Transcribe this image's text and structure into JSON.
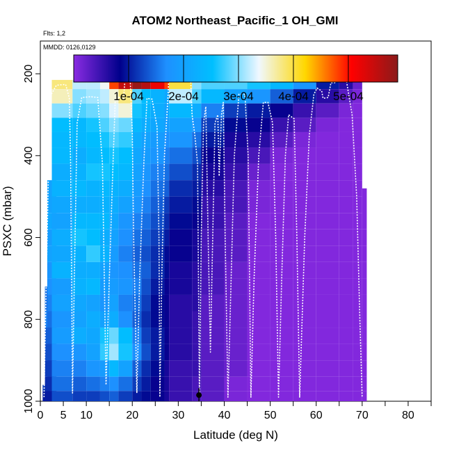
{
  "header": {
    "title": "ATOM2 Northeast_Pacific_1 OH_GMI",
    "flights": "Flts: 1,2",
    "dates": "MMDD: 0126,0129"
  },
  "colorbar": {
    "labels": [
      "1e-04",
      "2e-04",
      "3e-04",
      "4e-04",
      "5e-04"
    ],
    "ticks": [
      0.0001,
      0.0002,
      0.0003,
      0.0004,
      0.0005
    ],
    "range": [
      0,
      0.00059
    ],
    "colors": [
      "#8a2be2",
      "#00008b",
      "#1e90ff",
      "#00bfff",
      "#f0f8ff",
      "#ffd700",
      "#ff0000",
      "#8b1a1a"
    ]
  },
  "chart_data": {
    "type": "heatmap",
    "title": "ATOM2 Northeast_Pacific_1 OH_GMI",
    "xlabel": "Latitude (deg N)",
    "ylabel": "PSXC (mbar)",
    "xlim": [
      0,
      85
    ],
    "ylim": [
      1000,
      120
    ],
    "x_ticks": [
      0,
      5,
      10,
      20,
      30,
      40,
      50,
      60,
      70,
      80
    ],
    "y_ticks": [
      200,
      400,
      600,
      800,
      1000
    ],
    "grid": false,
    "pressure_levels": [
      180,
      220,
      255,
      290,
      325,
      360,
      400,
      440,
      480,
      520,
      560,
      600,
      640,
      680,
      720,
      760,
      800,
      840,
      880,
      920,
      960,
      990
    ],
    "latitude_bands": [
      {
        "lat_min": 0.5,
        "lat_max": 2,
        "p_top": 960,
        "values": [
          0.00012,
          0.0001
        ]
      },
      {
        "lat_min": 1,
        "lat_max": 3,
        "p_top": 720,
        "values": [
          0.00015,
          0.00016,
          0.00014,
          0.00013,
          0.00012,
          0.00011,
          0.0001
        ]
      },
      {
        "lat_min": 1.5,
        "lat_max": 3.5,
        "p_top": 460,
        "values": [
          0.0002,
          0.00021,
          0.00019,
          0.0002,
          0.00018,
          0.00017,
          0.00016,
          0.00015,
          0.00014,
          0.00013,
          0.00012,
          0.00011,
          0.0001
        ]
      },
      {
        "lat_min": 2.5,
        "lat_max": 7,
        "p_top": 215,
        "values": [
          0.00038,
          0.00036,
          0.0003,
          0.00025,
          0.00024,
          0.00024,
          0.00022,
          0.00023,
          0.00021,
          0.0002,
          0.00022,
          0.00021,
          0.00023,
          0.00019,
          0.0002,
          0.00018,
          0.00019,
          0.00017,
          0.00016,
          0.00015,
          0.00013
        ]
      },
      {
        "lat_min": 7,
        "lat_max": 10,
        "p_top": 215,
        "values": [
          0.00032,
          0.0003,
          0.00028,
          0.00024,
          0.00024,
          0.00022,
          0.00023,
          0.00024,
          0.00022,
          0.00024,
          0.00026,
          0.00023,
          0.00022,
          0.00023,
          0.00021,
          0.0002,
          0.00022,
          0.00018,
          0.00016,
          0.00014,
          0.00012
        ]
      },
      {
        "lat_min": 10,
        "lat_max": 13,
        "p_top": 215,
        "values": [
          0.00032,
          0.00031,
          0.00029,
          0.00026,
          0.00025,
          0.00024,
          0.00026,
          0.00023,
          0.00022,
          0.00024,
          0.00025,
          0.00027,
          0.00022,
          0.00024,
          0.0002,
          0.00022,
          0.00021,
          0.0002,
          0.00018,
          0.00015,
          0.00012
        ]
      },
      {
        "lat_min": 13,
        "lat_max": 15,
        "p_top": 215,
        "values": [
          0.00034,
          0.00032,
          0.0003,
          0.00028,
          0.00026,
          0.00025,
          0.00026,
          0.00024,
          0.00023,
          0.00024,
          0.00022,
          0.00023,
          0.0002,
          0.00019,
          0.00018,
          0.0002,
          0.00026,
          0.00027,
          0.00019,
          0.00016,
          0.00013
        ]
      },
      {
        "lat_min": 15,
        "lat_max": 17,
        "p_top": 175,
        "values": [
          0.00048,
          0.00035,
          0.00033,
          0.0003,
          0.00028,
          0.00026,
          0.00025,
          0.00023,
          0.00022,
          0.00021,
          0.0002,
          0.00019,
          0.00018,
          0.00019,
          0.0002,
          0.00022,
          0.00029,
          0.00031,
          0.00024,
          0.00017,
          0.00014
        ]
      },
      {
        "lat_min": 17,
        "lat_max": 20,
        "p_top": 175,
        "values": [
          0.00055,
          0.00038,
          0.00035,
          0.00029,
          0.00027,
          0.00025,
          0.00024,
          0.00022,
          0.0002,
          0.00018,
          0.00017,
          0.00016,
          0.00017,
          0.00018,
          0.00016,
          0.00017,
          0.00025,
          0.00026,
          0.0002,
          0.00015,
          0.00012
        ]
      },
      {
        "lat_min": 20,
        "lat_max": 22,
        "p_top": 175,
        "values": [
          0.00058,
          0.00028,
          0.00026,
          0.00024,
          0.00022,
          0.00021,
          0.0002,
          0.00019,
          0.00018,
          0.00016,
          0.00015,
          0.00014,
          0.00015,
          0.00016,
          0.00015,
          0.00014,
          0.00016,
          0.00017,
          0.00014,
          0.00012,
          0.0001
        ]
      },
      {
        "lat_min": 22,
        "lat_max": 24,
        "p_top": 175,
        "values": [
          0.00056,
          0.00025,
          0.00024,
          0.00022,
          0.0002,
          0.00019,
          0.00018,
          0.00017,
          0.00016,
          0.00015,
          0.00014,
          0.00013,
          0.00014,
          0.00013,
          0.00012,
          0.00011,
          0.00012,
          0.00013,
          0.00011,
          0.0001,
          9e-05
        ]
      },
      {
        "lat_min": 24,
        "lat_max": 27,
        "p_top": 175,
        "values": [
          0.00052,
          0.00023,
          0.00022,
          0.00021,
          0.00019,
          0.00018,
          0.00016,
          0.00015,
          0.00014,
          0.00013,
          0.00012,
          0.00011,
          0.00011,
          0.0001,
          9e-05,
          9e-05,
          0.0001,
          0.0001,
          9e-05,
          8e-05,
          8e-05
        ]
      },
      {
        "lat_min": 27,
        "lat_max": 28,
        "p_top": 175,
        "values": [
          0.00048,
          0.00021,
          0.0002,
          0.00019,
          0.00017,
          0.00016,
          0.00015,
          0.00014,
          0.00012,
          0.00011,
          0.0001,
          9e-05,
          9e-05,
          8e-05,
          8e-05,
          8e-05,
          8e-05,
          8e-05,
          7e-05,
          7e-05,
          7e-05
        ]
      },
      {
        "lat_min": 28,
        "lat_max": 33,
        "p_top": 175,
        "values": [
          0.0004,
          0.00032,
          0.00024,
          0.0002,
          0.00018,
          0.00015,
          0.00013,
          0.00011,
          0.0001,
          9e-05,
          8e-05,
          8e-05,
          7e-05,
          7e-05,
          6e-05,
          6e-05,
          6e-05,
          6e-05,
          5e-05,
          5e-05,
          5e-05
        ]
      },
      {
        "lat_min": 33,
        "lat_max": 35,
        "p_top": 175,
        "values": [
          0.0003,
          0.00028,
          0.00022,
          0.00018,
          0.00015,
          0.00013,
          0.00011,
          0.0001,
          9e-05,
          8e-05,
          7e-05,
          7e-05,
          6e-05,
          6e-05,
          6e-05,
          5e-05,
          5e-05,
          5e-05,
          5e-05,
          4e-05,
          4e-05
        ]
      },
      {
        "lat_min": 35,
        "lat_max": 40,
        "p_top": 175,
        "values": [
          0.00028,
          0.00024,
          0.00016,
          0.00012,
          0.0001,
          8e-05,
          7e-05,
          6e-05,
          5e-05,
          5e-05,
          4e-05,
          4e-05,
          4e-05,
          4e-05,
          3e-05,
          3e-05,
          3e-05,
          3e-05,
          3e-05,
          3e-05,
          3e-05
        ]
      },
      {
        "lat_min": 40,
        "lat_max": 45,
        "p_top": 175,
        "values": [
          0.00028,
          0.0002,
          0.00012,
          9e-05,
          7e-05,
          6e-05,
          5e-05,
          4e-05,
          4e-05,
          3e-05,
          3e-05,
          3e-05,
          2e-05,
          2e-05,
          2e-05,
          2e-05,
          2e-05,
          2e-05,
          2e-05,
          1e-05,
          1e-05
        ]
      },
      {
        "lat_min": 45,
        "lat_max": 50,
        "p_top": 175,
        "values": [
          0.00026,
          0.00018,
          0.0001,
          8e-05,
          6e-05,
          4e-05,
          2e-05,
          1e-05,
          1e-05,
          5e-06,
          5e-06,
          5e-06,
          5e-06,
          5e-06,
          5e-06,
          5e-06,
          5e-06,
          5e-06,
          5e-06,
          5e-06,
          5e-06
        ]
      },
      {
        "lat_min": 50,
        "lat_max": 55,
        "p_top": 175,
        "values": [
          0.00024,
          0.00014,
          8e-05,
          5e-05,
          3e-05,
          1e-05,
          5e-06,
          5e-06,
          5e-06,
          5e-06,
          5e-06,
          5e-06,
          5e-06,
          5e-06,
          5e-06,
          5e-06,
          5e-06,
          5e-06,
          5e-06,
          5e-06,
          5e-06
        ]
      },
      {
        "lat_min": 55,
        "lat_max": 60,
        "p_top": 175,
        "values": [
          0.00018,
          0.0001,
          5e-05,
          3e-05,
          1e-05,
          5e-06,
          5e-06,
          5e-06,
          5e-06,
          5e-06,
          5e-06,
          5e-06,
          5e-06,
          5e-06,
          5e-06,
          5e-06,
          5e-06,
          5e-06,
          5e-06,
          5e-06,
          5e-06
        ]
      },
      {
        "lat_min": 60,
        "lat_max": 65,
        "p_top": 175,
        "values": [
          0.0001,
          6e-05,
          3e-05,
          1e-05,
          5e-06,
          5e-06,
          5e-06,
          5e-06,
          5e-06,
          5e-06,
          5e-06,
          5e-06,
          5e-06,
          5e-06,
          5e-06,
          5e-06,
          5e-06,
          5e-06,
          5e-06,
          5e-06,
          5e-06
        ]
      },
      {
        "lat_min": 65,
        "lat_max": 68,
        "p_top": 175,
        "values": [
          6e-05,
          3e-05,
          1e-05,
          5e-06,
          5e-06,
          5e-06,
          5e-06,
          5e-06,
          5e-06,
          5e-06,
          5e-06,
          5e-06,
          5e-06,
          5e-06,
          5e-06,
          5e-06,
          5e-06,
          5e-06,
          5e-06,
          5e-06,
          5e-06
        ]
      },
      {
        "lat_min": 68,
        "lat_max": 70,
        "p_top": 210,
        "values": [
          2e-05,
          1e-05,
          5e-06,
          5e-06,
          5e-06,
          5e-06,
          5e-06,
          5e-06,
          5e-06,
          5e-06,
          5e-06,
          5e-06,
          5e-06,
          5e-06,
          5e-06,
          5e-06,
          5e-06,
          5e-06,
          5e-06,
          5e-06,
          5e-06
        ]
      },
      {
        "lat_min": 70,
        "lat_max": 71,
        "p_top": 480,
        "values": [
          5e-06,
          5e-06,
          5e-06,
          5e-06,
          5e-06,
          5e-06,
          5e-06,
          5e-06,
          5e-06,
          5e-06,
          5e-06,
          5e-06
        ]
      }
    ],
    "flight_track": [
      [
        0.8,
        990
      ],
      [
        1.2,
        760
      ],
      [
        1.8,
        420
      ],
      [
        2.4,
        250
      ],
      [
        3.5,
        228
      ],
      [
        5.5,
        226
      ],
      [
        6.3,
        260
      ],
      [
        6.6,
        420
      ],
      [
        7,
        980
      ],
      [
        7.4,
        700
      ],
      [
        8,
        320
      ],
      [
        9,
        258
      ],
      [
        11,
        256
      ],
      [
        12.5,
        258
      ],
      [
        13.5,
        420
      ],
      [
        14.3,
        960
      ],
      [
        15,
        700
      ],
      [
        15.8,
        420
      ],
      [
        16.3,
        260
      ],
      [
        17.2,
        258
      ],
      [
        18.1,
        262
      ],
      [
        18.5,
        200
      ],
      [
        19.5,
        200
      ],
      [
        20,
        340
      ],
      [
        20.3,
        600
      ],
      [
        21,
        980
      ],
      [
        21.6,
        700
      ],
      [
        22.5,
        420
      ],
      [
        23.2,
        260
      ],
      [
        24.3,
        262
      ],
      [
        25.4,
        330
      ],
      [
        25.8,
        600
      ],
      [
        26,
        990
      ],
      [
        26.4,
        700
      ],
      [
        27,
        400
      ],
      [
        27.8,
        250
      ],
      [
        28,
        185
      ],
      [
        32.6,
        185
      ],
      [
        33,
        300
      ],
      [
        33.6,
        350
      ],
      [
        34.2,
        420
      ],
      [
        34.6,
        990
      ],
      [
        35,
        600
      ],
      [
        35.5,
        320
      ],
      [
        36,
        280
      ],
      [
        36.5,
        600
      ],
      [
        37,
        880
      ],
      [
        37.5,
        600
      ],
      [
        38,
        320
      ],
      [
        38.6,
        300
      ],
      [
        38.9,
        450
      ],
      [
        39.4,
        300
      ],
      [
        39.8,
        270
      ],
      [
        40.2,
        600
      ],
      [
        40.8,
        990
      ],
      [
        41.5,
        700
      ],
      [
        42.2,
        400
      ],
      [
        43.2,
        250
      ],
      [
        44.5,
        250
      ],
      [
        45.2,
        400
      ],
      [
        45.8,
        990
      ],
      [
        46.5,
        700
      ],
      [
        47.5,
        400
      ],
      [
        48.5,
        270
      ],
      [
        49.5,
        270
      ],
      [
        50.5,
        320
      ],
      [
        51.2,
        600
      ],
      [
        51.8,
        990
      ],
      [
        52.5,
        700
      ],
      [
        53.3,
        400
      ],
      [
        54,
        300
      ],
      [
        55.2,
        310
      ],
      [
        55.8,
        600
      ],
      [
        56.4,
        990
      ],
      [
        57.5,
        600
      ],
      [
        58.5,
        350
      ],
      [
        59.5,
        250
      ],
      [
        60.2,
        235
      ],
      [
        61.2,
        242
      ],
      [
        61.5,
        260
      ],
      [
        62.6,
        258
      ],
      [
        63.2,
        222
      ],
      [
        64,
        222
      ],
      [
        64.8,
        212
      ],
      [
        66.5,
        212
      ],
      [
        67.8,
        300
      ],
      [
        68.8,
        500
      ],
      [
        69.5,
        800
      ],
      [
        70,
        990
      ]
    ],
    "marker": {
      "lat": 34.5,
      "p": 985
    }
  }
}
